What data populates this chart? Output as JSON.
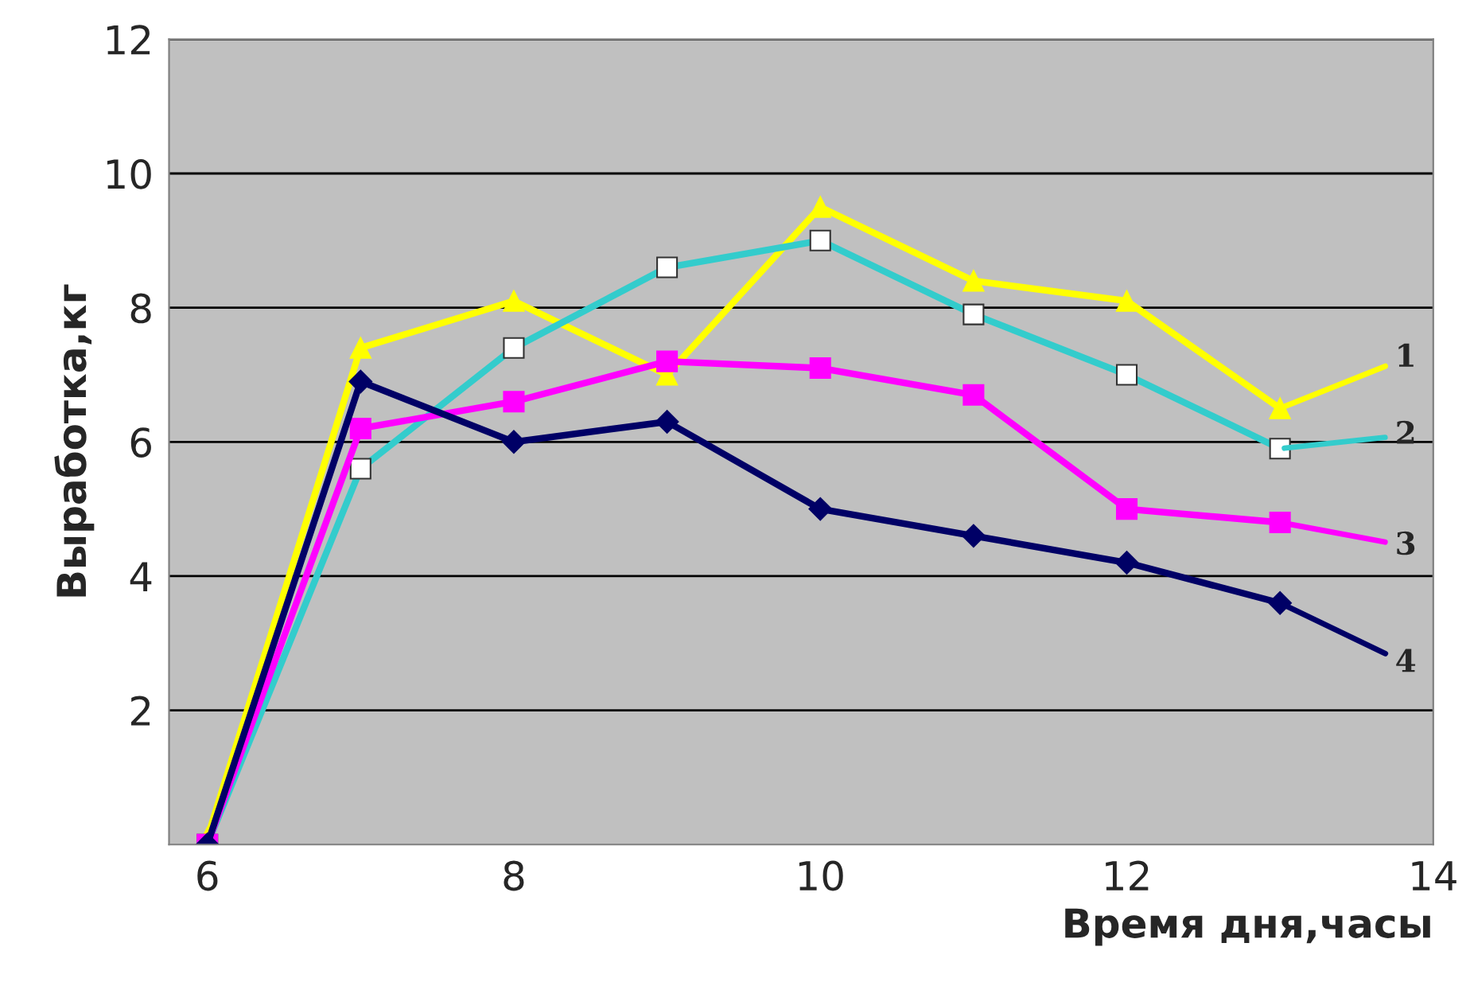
{
  "chart_data": {
    "type": "line",
    "xlabel": "Время дня,часы",
    "ylabel": "Выработка,кг",
    "x": [
      6,
      7,
      8,
      9,
      10,
      11,
      12,
      13
    ],
    "series": [
      {
        "name": "1",
        "color": "#ffff00",
        "marker": "triangle",
        "values": [
          0.1,
          7.4,
          8.1,
          7.0,
          9.5,
          8.4,
          8.1,
          6.5
        ]
      },
      {
        "name": "2",
        "color": "#33cccc",
        "marker": "square",
        "values": [
          0,
          5.6,
          7.4,
          8.6,
          9.0,
          7.9,
          7.0,
          5.9
        ]
      },
      {
        "name": "3",
        "color": "#ff00ff",
        "marker": "square",
        "values": [
          0,
          6.2,
          6.6,
          7.2,
          7.1,
          6.7,
          5.0,
          4.8
        ]
      },
      {
        "name": "4",
        "color": "#000066",
        "marker": "diamond",
        "values": [
          0,
          6.9,
          6.0,
          6.3,
          5.0,
          4.6,
          4.2,
          3.6
        ]
      }
    ],
    "xlim": [
      5.75,
      14
    ],
    "xticks": [
      6,
      8,
      10,
      12,
      14
    ],
    "ylim": [
      0,
      12
    ],
    "yticks": [
      2,
      4,
      6,
      8,
      10,
      12
    ],
    "grid": "y",
    "legend": "right"
  }
}
